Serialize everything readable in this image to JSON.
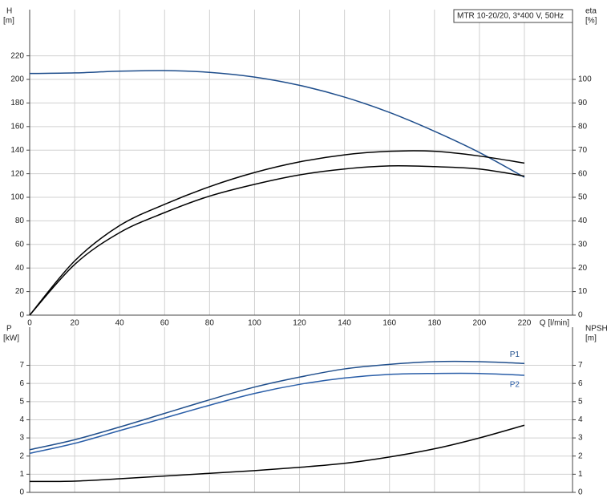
{
  "chart_data": [
    {
      "type": "line",
      "title": "MTR 10-20/20, 3*400 V, 50Hz",
      "y_label": "H",
      "y_unit": "[m]",
      "y2_label": "eta",
      "y2_unit": "[%]",
      "x_label": "Q [l/min]",
      "x": [
        0,
        20,
        40,
        60,
        80,
        100,
        120,
        140,
        160,
        180,
        200,
        220
      ],
      "xlim": [
        0,
        241.4
      ],
      "xticks": [
        0,
        20,
        40,
        60,
        80,
        100,
        120,
        140,
        160,
        180,
        200,
        220
      ],
      "ylim": [
        0,
        259.2
      ],
      "yticks": [
        0,
        20,
        40,
        60,
        80,
        100,
        120,
        140,
        160,
        180,
        200,
        220
      ],
      "y2lim": [
        0,
        129.6
      ],
      "y2ticks": [
        0,
        10,
        20,
        30,
        40,
        50,
        60,
        70,
        80,
        90,
        100
      ],
      "grid": true,
      "series": [
        {
          "color": "#1f4e8c",
          "values": [
            205,
            205.5,
            207,
            207.5,
            206,
            202,
            195,
            185,
            172,
            156,
            138,
            117
          ]
        },
        {
          "color": "#000000",
          "axis": "y2",
          "values": [
            0,
            23,
            38,
            47,
            54.5,
            60.5,
            65,
            68,
            69.5,
            69.5,
            67.5,
            64.5
          ]
        },
        {
          "color": "#000000",
          "axis": "y2",
          "values": [
            0,
            21.5,
            35,
            43.5,
            50.5,
            55.5,
            59.5,
            62,
            63.3,
            63,
            62,
            59
          ]
        }
      ]
    },
    {
      "type": "line",
      "y_label": "P",
      "y_unit": "[kW]",
      "y2_label": "NPSH",
      "y2_unit": "[m]",
      "x": [
        0,
        20,
        40,
        60,
        80,
        100,
        120,
        140,
        160,
        180,
        200,
        220
      ],
      "xlim": [
        0,
        241.4
      ],
      "xticks": [
        0,
        20,
        40,
        60,
        80,
        100,
        120,
        140,
        160,
        180,
        200,
        220
      ],
      "ylim": [
        0,
        9.1
      ],
      "yticks": [
        0,
        1,
        2,
        3,
        4,
        5,
        6,
        7
      ],
      "y2lim": [
        0,
        9.1
      ],
      "y2ticks": [
        0,
        1,
        2,
        3,
        4,
        5,
        6,
        7
      ],
      "grid": true,
      "series": [
        {
          "name": "P1",
          "color": "#1f4e8c",
          "values": [
            2.35,
            2.9,
            3.6,
            4.35,
            5.1,
            5.8,
            6.35,
            6.8,
            7.05,
            7.2,
            7.2,
            7.1
          ]
        },
        {
          "name": "P2",
          "color": "#2a5ea8",
          "values": [
            2.15,
            2.7,
            3.4,
            4.1,
            4.8,
            5.45,
            5.95,
            6.3,
            6.5,
            6.55,
            6.55,
            6.45
          ]
        },
        {
          "color": "#000000",
          "axis": "y2",
          "values": [
            0.6,
            0.62,
            0.75,
            0.9,
            1.05,
            1.2,
            1.38,
            1.6,
            1.95,
            2.4,
            3.0,
            3.7
          ]
        }
      ]
    }
  ]
}
